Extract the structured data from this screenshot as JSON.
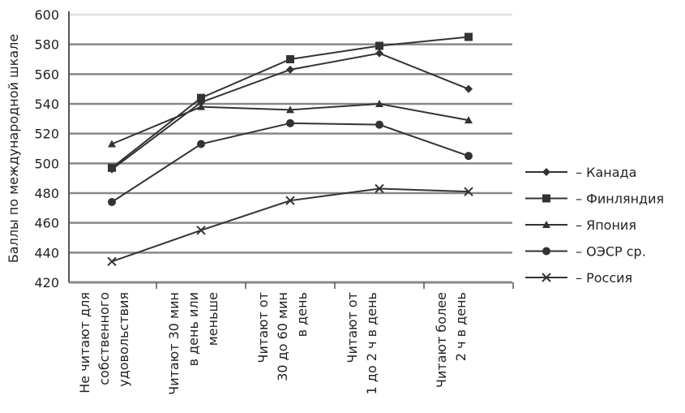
{
  "chart_data": {
    "type": "line",
    "title": "",
    "xlabel": "",
    "ylabel": "Баллы по международной шкале",
    "ylim": [
      420,
      600
    ],
    "yticks": [
      420,
      440,
      460,
      480,
      500,
      520,
      540,
      560,
      580,
      600
    ],
    "grid": true,
    "legend_position": "right",
    "categories": [
      "Не читают для собственного удовольствия",
      "Читают 30 мин в день или меньше",
      "Читают от 30 до 60 мин в день",
      "Читают от 1 до 2 ч в день",
      "Читают более 2 ч в день"
    ],
    "category_lines": [
      [
        "Не читают для",
        "собственного",
        "удовольствия"
      ],
      [
        "Читают 30 мин",
        "в день или",
        "меньше"
      ],
      [
        "Читают от",
        "30 до 60 мин",
        "в день"
      ],
      [
        "Читают от",
        "1 до 2 ч в день"
      ],
      [
        "Читают более",
        "2 ч в день"
      ]
    ],
    "series": [
      {
        "name": "– Канада",
        "marker": "diamond",
        "values": [
          496,
          541,
          563,
          574,
          550
        ]
      },
      {
        "name": "– Финляндия",
        "marker": "square",
        "values": [
          497,
          544,
          570,
          579,
          585
        ]
      },
      {
        "name": "– Япония",
        "marker": "triangle",
        "values": [
          513,
          538,
          536,
          540,
          529
        ]
      },
      {
        "name": "– ОЭСР ср.",
        "marker": "circle",
        "values": [
          474,
          513,
          527,
          526,
          505
        ]
      },
      {
        "name": "– Россия",
        "marker": "x",
        "values": [
          434,
          455,
          475,
          483,
          481
        ]
      }
    ],
    "color": "#333333"
  }
}
